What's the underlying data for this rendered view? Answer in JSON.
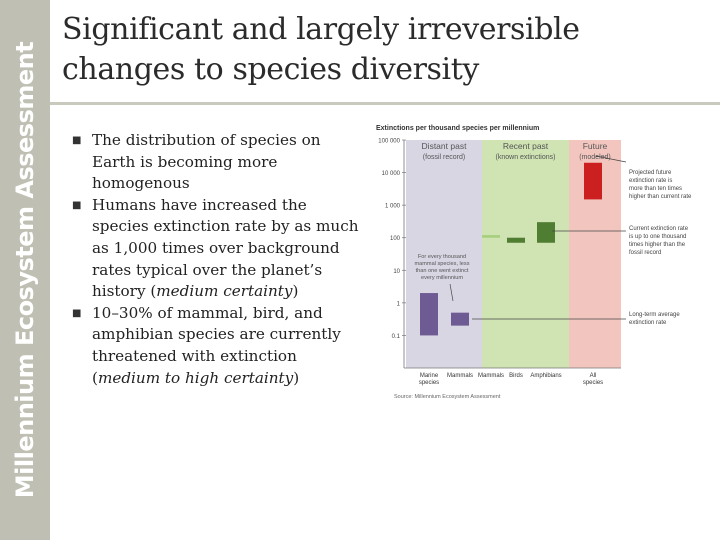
{
  "sidebar": {
    "text": "Millennium Ecosystem Assessment"
  },
  "title": {
    "line1": "Significant and largely irreversible",
    "line2": "changes to species diversity"
  },
  "bullets": [
    {
      "text": "The distribution of species on Earth is becoming more homogenous",
      "em": "",
      "after": ""
    },
    {
      "text": "Humans have increased the species extinction rate by as much as 1,000 times over background rates typical over the planet’s history (",
      "em": "medium certainty",
      "after": ")"
    },
    {
      "text": "10–30% of mammal, bird, and amphibian species are currently threatened with extinction (",
      "em": "medium to high certainty",
      "after": ")"
    }
  ],
  "chart_data": {
    "type": "bar",
    "title": "Extinctions per thousand species per millennium",
    "scale": "log",
    "ylim": [
      0.01,
      100000
    ],
    "y_ticks": [
      "100 000",
      "10 000",
      "1 000",
      "100",
      "10",
      "1",
      "0.1"
    ],
    "panels": [
      {
        "label": "Distant past",
        "sublabel": "(fossil record)",
        "color": "#d9d6e4"
      },
      {
        "label": "Recent past",
        "sublabel": "(known extinctions)",
        "color": "#cfe3b3"
      },
      {
        "label": "Future",
        "sublabel": "(modeled)",
        "color": "#f2c6bf"
      }
    ],
    "categories": [
      "Marine species",
      "Mammals",
      "Mammals",
      "Birds",
      "Amphibians",
      "All species"
    ],
    "bars": [
      {
        "category": "Marine species",
        "low": 0.1,
        "high": 2,
        "color": "#6e5b93"
      },
      {
        "category": "Mammals",
        "low": 0.2,
        "high": 0.5,
        "color": "#6e5b93"
      },
      {
        "category": "Mammals",
        "low": 100,
        "high": 120,
        "color": "#a6cf7d"
      },
      {
        "category": "Birds",
        "low": 70,
        "high": 100,
        "color": "#4f7d32"
      },
      {
        "category": "Amphibians",
        "low": 70,
        "high": 300,
        "color": "#4f7d32"
      },
      {
        "category": "All species",
        "low": 1500,
        "high": 20000,
        "color": "#cc1f1f"
      }
    ],
    "annotations": {
      "mammal_note": [
        "For every thousand",
        "mammal species, less",
        "than one went extinct",
        "every millennium"
      ],
      "projected": [
        "Projected future",
        "extinction rate is",
        "more than ten times",
        "higher than current rate"
      ],
      "current": [
        "Current extinction rate",
        "is up to one thousand",
        "times higher than the",
        "fossil record"
      ],
      "longterm": [
        "Long-term average",
        "extinction rate"
      ]
    },
    "source": "Source: Millennium Ecosystem Assessment"
  }
}
